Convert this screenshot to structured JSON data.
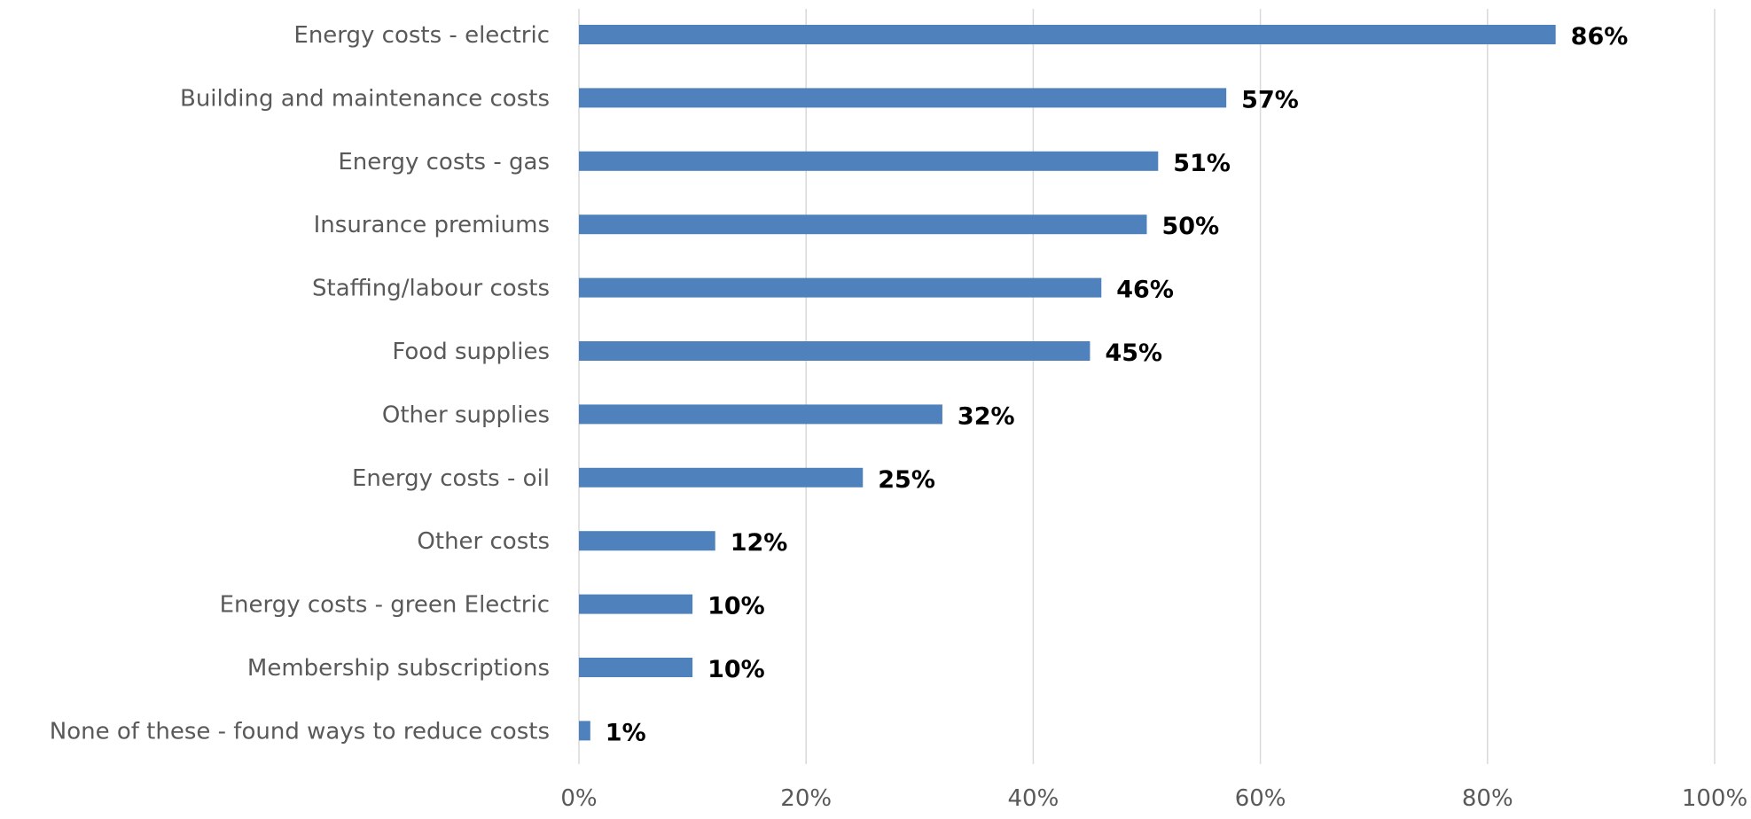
{
  "chart_data": {
    "type": "bar",
    "orientation": "horizontal",
    "categories": [
      "Energy costs - electric",
      "Building and maintenance costs",
      "Energy costs - gas",
      "Insurance premiums",
      "Staffing/labour costs",
      "Food supplies",
      "Other supplies",
      "Energy costs - oil",
      "Other costs",
      "Energy costs - green Electric",
      "Membership subscriptions",
      "None of these - found ways to reduce costs"
    ],
    "values": [
      86,
      57,
      51,
      50,
      46,
      45,
      32,
      25,
      12,
      10,
      10,
      1
    ],
    "value_labels": [
      "86%",
      "57%",
      "51%",
      "50%",
      "46%",
      "45%",
      "32%",
      "25%",
      "12%",
      "10%",
      "10%",
      "1%"
    ],
    "xlim": [
      0,
      100
    ],
    "x_ticks": [
      "0%",
      "20%",
      "40%",
      "60%",
      "80%",
      "100%"
    ],
    "x_tick_values": [
      0,
      20,
      40,
      60,
      80,
      100
    ],
    "grid": true,
    "bar_color": "#4f81bd",
    "title": "",
    "xlabel": "",
    "ylabel": ""
  }
}
